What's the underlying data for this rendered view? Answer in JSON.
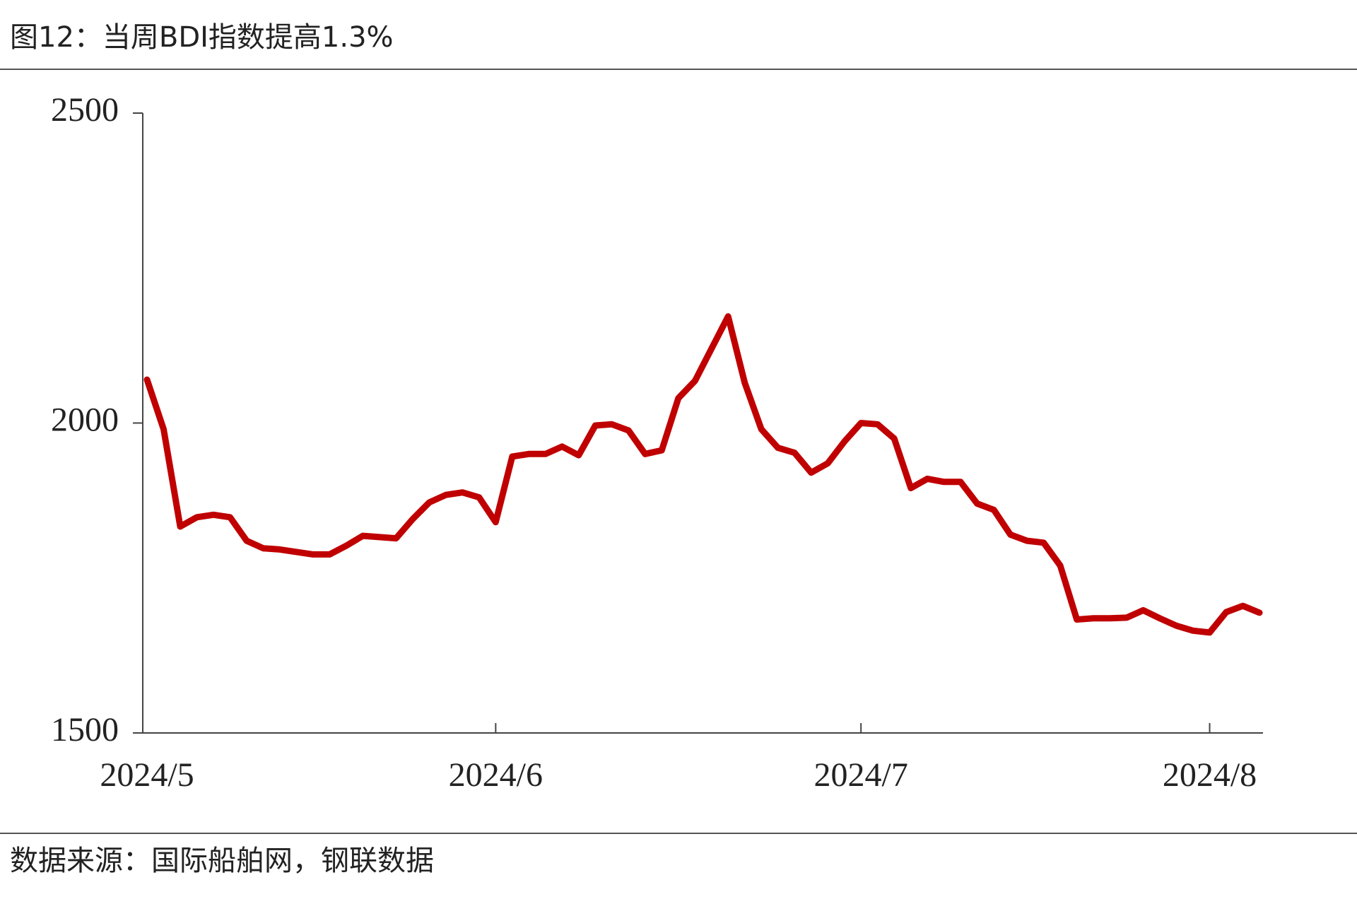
{
  "chart_data": {
    "type": "line",
    "title": "图12：当周BDI指数提高1.3%",
    "source": "数据来源：国际船舶网，钢联数据",
    "categories": [
      "2024/5",
      null,
      null,
      null,
      null,
      null,
      null,
      null,
      null,
      null,
      null,
      null,
      null,
      null,
      null,
      null,
      null,
      null,
      null,
      null,
      null,
      "2024/6",
      null,
      null,
      null,
      null,
      null,
      null,
      null,
      null,
      null,
      null,
      null,
      null,
      null,
      null,
      null,
      null,
      null,
      null,
      null,
      null,
      null,
      "2024/7",
      null,
      null,
      null,
      null,
      null,
      null,
      null,
      null,
      null,
      null,
      null,
      null,
      null,
      null,
      null,
      null,
      null,
      null,
      null,
      null,
      "2024/8",
      null,
      null,
      null
    ],
    "series": [
      {
        "color": "#c00000",
        "values": [
          2070,
          1990,
          1833,
          1848,
          1852,
          1848,
          1810,
          1798,
          1796,
          1792,
          1788,
          1788,
          1802,
          1818,
          1816,
          1814,
          1845,
          1872,
          1884,
          1888,
          1880,
          1840,
          1946,
          1950,
          1950,
          1962,
          1948,
          1996,
          1998,
          1988,
          1950,
          1956,
          2040,
          2068,
          2120,
          2172,
          2065,
          1990,
          1960,
          1952,
          1920,
          1935,
          1970,
          2000,
          1998,
          1975,
          1895,
          1910,
          1905,
          1905,
          1870,
          1860,
          1820,
          1810,
          1807,
          1770,
          1683,
          1685,
          1685,
          1686,
          1698,
          1685,
          1673,
          1665,
          1662,
          1695,
          1705,
          1694
        ]
      }
    ],
    "ylim": [
      1500,
      2500
    ],
    "yticks": [
      1500,
      2000,
      2500
    ],
    "grid": false
  }
}
